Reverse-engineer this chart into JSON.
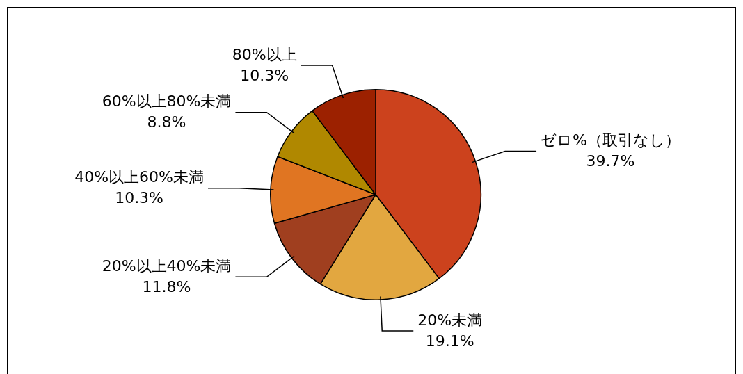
{
  "chart_data": {
    "type": "pie",
    "categories": [
      "ゼロ%（取引なし）",
      "20%未満",
      "20%以上40%未満",
      "40%以上60%未満",
      "60%以上80%未満",
      "80%以上"
    ],
    "values": [
      39.7,
      19.1,
      11.8,
      10.3,
      8.8,
      10.3
    ],
    "value_labels": [
      "39.7%",
      "19.1%",
      "11.8%",
      "10.3%",
      "8.8%",
      "10.3%"
    ],
    "colors": [
      "#cc421d",
      "#e2a740",
      "#a03f1f",
      "#e07522",
      "#b08800",
      "#9c2100"
    ],
    "legend": false
  }
}
